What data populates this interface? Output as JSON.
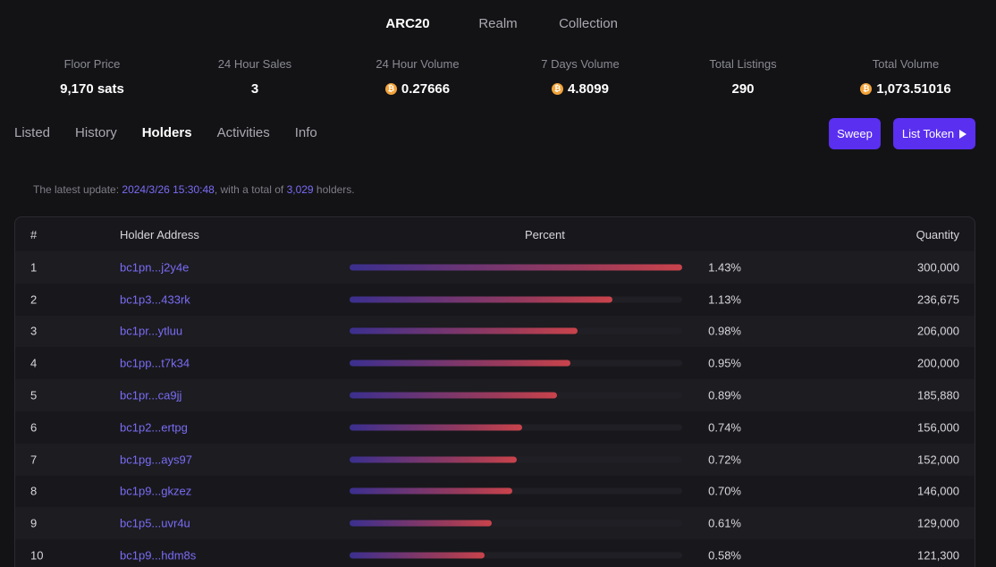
{
  "top_tabs": [
    {
      "label": "ARC20",
      "active": true
    },
    {
      "label": "Realm",
      "active": false
    },
    {
      "label": "Collection",
      "active": false
    }
  ],
  "stats": [
    {
      "label": "Floor Price",
      "value": "9,170 sats",
      "btc": false
    },
    {
      "label": "24 Hour Sales",
      "value": "3",
      "btc": false
    },
    {
      "label": "24 Hour Volume",
      "value": "0.27666",
      "btc": true
    },
    {
      "label": "7 Days Volume",
      "value": "4.8099",
      "btc": true
    },
    {
      "label": "Total Listings",
      "value": "290",
      "btc": false
    },
    {
      "label": "Total Volume",
      "value": "1,073.51016",
      "btc": true
    }
  ],
  "btc_symbol": "₿",
  "sub_tabs": [
    {
      "label": "Listed",
      "active": false
    },
    {
      "label": "History",
      "active": false
    },
    {
      "label": "Holders",
      "active": true
    },
    {
      "label": "Activities",
      "active": false
    },
    {
      "label": "Info",
      "active": false
    }
  ],
  "buttons": {
    "sweep": "Sweep",
    "list_token": "List Token"
  },
  "update": {
    "prefix": "The latest update: ",
    "datetime": "2024/3/26 15:30:48",
    "middle": ", with a total of ",
    "count": "3,029",
    "suffix": " holders."
  },
  "table": {
    "headers": {
      "rank": "#",
      "address": "Holder Address",
      "percent": "Percent",
      "quantity": "Quantity"
    },
    "rows": [
      {
        "rank": "1",
        "address": "bc1pn...j2y4e",
        "percent": "1.43%",
        "quantity": "300,000",
        "share": 1.43
      },
      {
        "rank": "2",
        "address": "bc1p3...433rk",
        "percent": "1.13%",
        "quantity": "236,675",
        "share": 1.13
      },
      {
        "rank": "3",
        "address": "bc1pr...ytluu",
        "percent": "0.98%",
        "quantity": "206,000",
        "share": 0.98
      },
      {
        "rank": "4",
        "address": "bc1pp...t7k34",
        "percent": "0.95%",
        "quantity": "200,000",
        "share": 0.95
      },
      {
        "rank": "5",
        "address": "bc1pr...ca9jj",
        "percent": "0.89%",
        "quantity": "185,880",
        "share": 0.89
      },
      {
        "rank": "6",
        "address": "bc1p2...ertpg",
        "percent": "0.74%",
        "quantity": "156,000",
        "share": 0.74
      },
      {
        "rank": "7",
        "address": "bc1pg...ays97",
        "percent": "0.72%",
        "quantity": "152,000",
        "share": 0.72
      },
      {
        "rank": "8",
        "address": "bc1p9...gkzez",
        "percent": "0.70%",
        "quantity": "146,000",
        "share": 0.7
      },
      {
        "rank": "9",
        "address": "bc1p5...uvr4u",
        "percent": "0.61%",
        "quantity": "129,000",
        "share": 0.61
      },
      {
        "rank": "10",
        "address": "bc1p9...hdm8s",
        "percent": "0.58%",
        "quantity": "121,300",
        "share": 0.58
      }
    ]
  },
  "colors": {
    "accent": "#5a2ff0",
    "link": "#7a6cf5",
    "btc": "#f2a33a",
    "bar_end": "#c9434b"
  }
}
